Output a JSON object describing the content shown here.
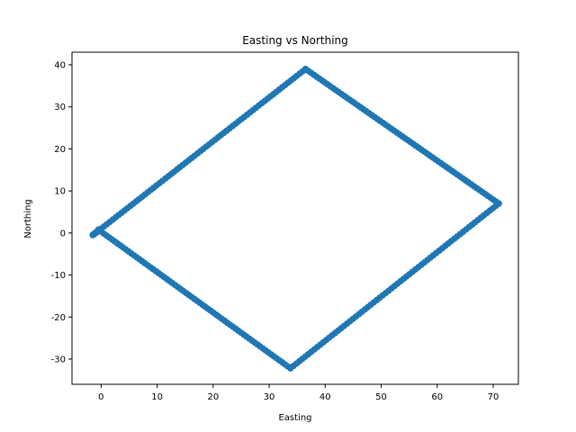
{
  "chart_data": {
    "type": "scatter",
    "title": "Easting vs Northing",
    "xlabel": "Easting",
    "ylabel": "Northing",
    "xlim": [
      -5.2,
      74.5
    ],
    "ylim": [
      -36,
      43
    ],
    "xticks": [
      0,
      10,
      20,
      30,
      40,
      50,
      60,
      70
    ],
    "yticks": [
      -30,
      -20,
      -10,
      0,
      10,
      20,
      30,
      40
    ],
    "grid": false,
    "legend": "none",
    "series": [
      {
        "color": "#1f77b4",
        "marker": "circle",
        "vertices": [
          [
            -1.5,
            -0.5
          ],
          [
            0,
            1
          ],
          [
            36.5,
            39
          ],
          [
            71,
            7
          ],
          [
            33.8,
            -32.2
          ],
          [
            -0.5,
            0.8
          ]
        ],
        "points_per_segment": 70
      }
    ]
  }
}
